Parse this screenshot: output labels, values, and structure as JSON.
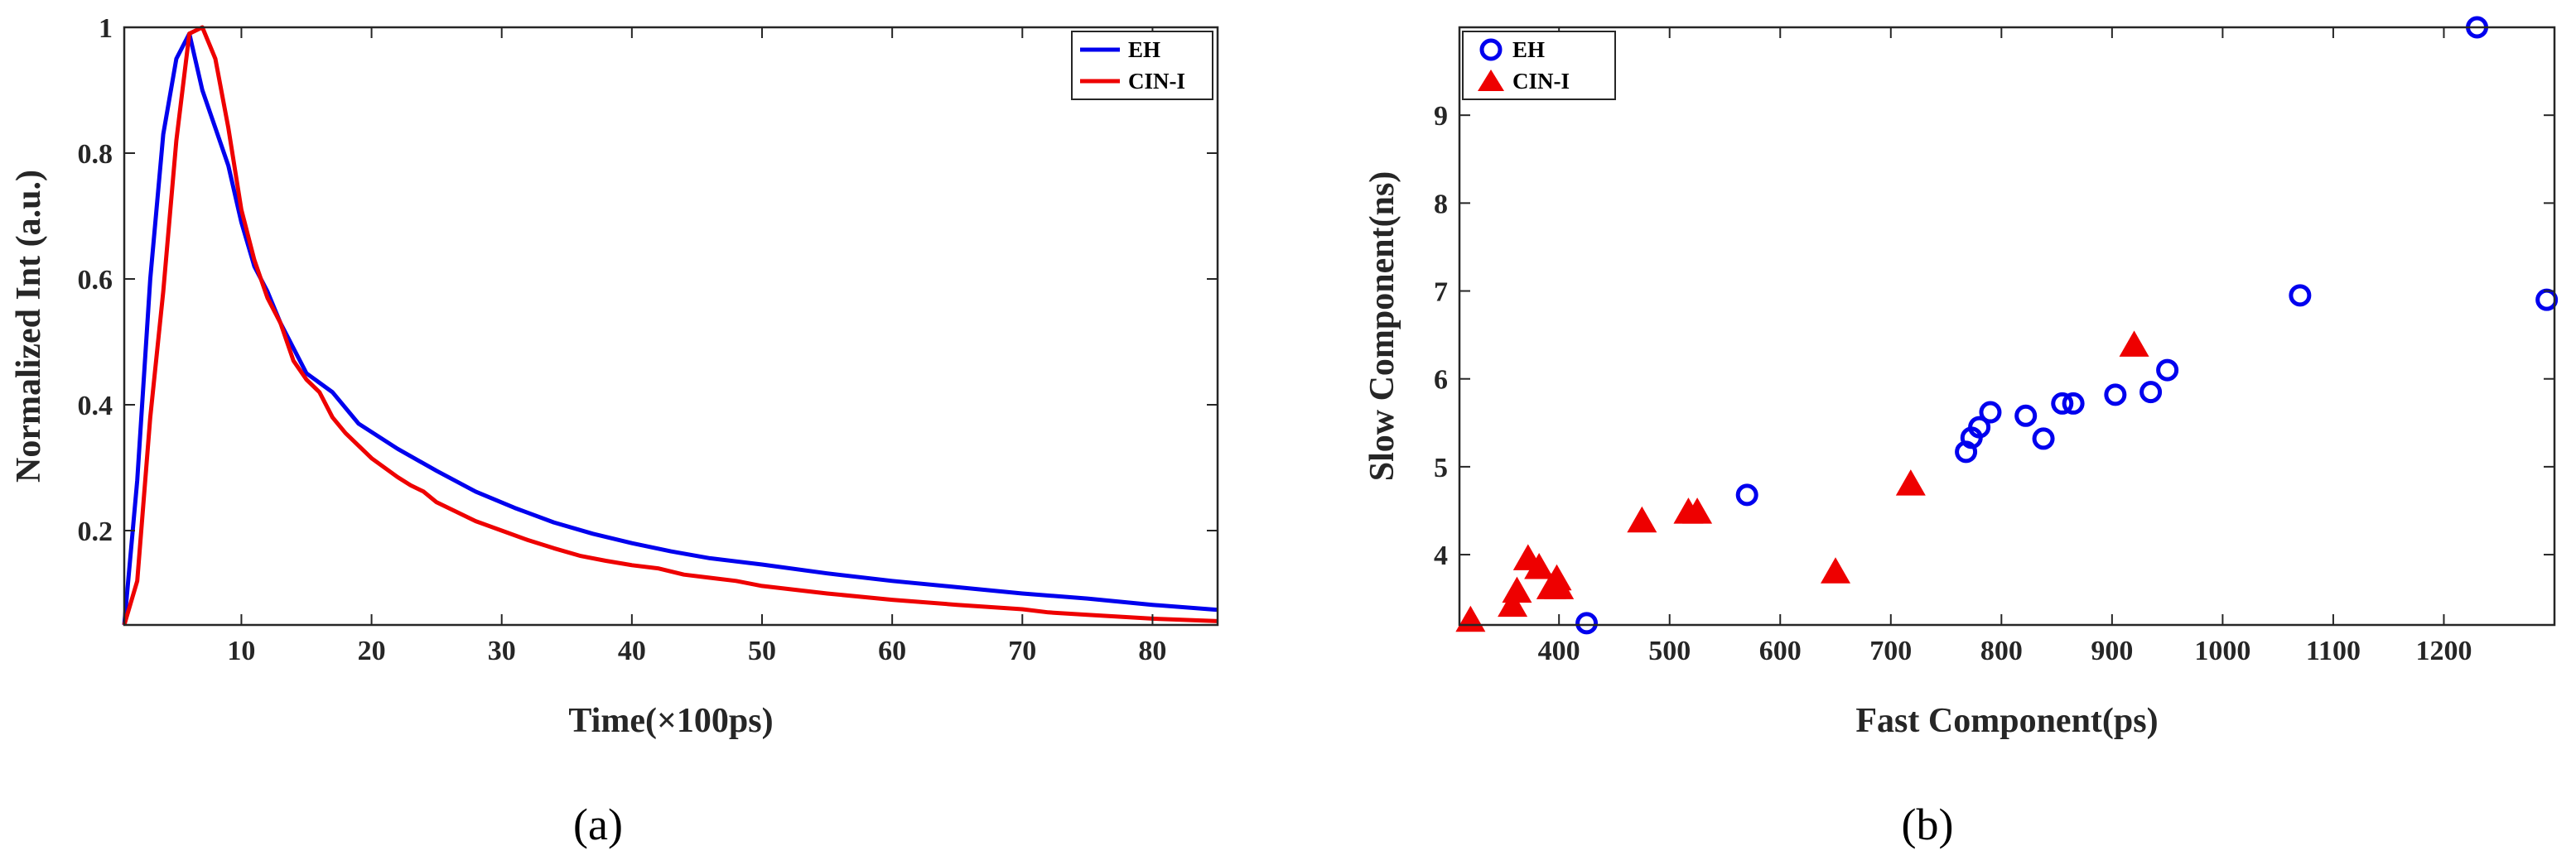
{
  "chart_data": [
    {
      "id": "a",
      "type": "line",
      "caption": "(a)",
      "xlabel": "Time(×100ps)",
      "ylabel": "Normalized Int (a.u.)",
      "xlim": [
        1,
        85
      ],
      "ylim": [
        0.05,
        1.0
      ],
      "xticks": [
        10,
        20,
        30,
        40,
        50,
        60,
        70,
        80
      ],
      "yticks": [
        0.2,
        0.4,
        0.6,
        0.8,
        1
      ],
      "ytick_labels": [
        "0.2",
        "0.4",
        "0.6",
        "0.8",
        "1"
      ],
      "legend_position": "top-right",
      "series": [
        {
          "name": "EH",
          "color": "#0000ee",
          "x": [
            1,
            2,
            3,
            4,
            5,
            6,
            7,
            8,
            9,
            10,
            11,
            12,
            13,
            14,
            15,
            17,
            19,
            22,
            25,
            28,
            31,
            34,
            37,
            40,
            43,
            46,
            50,
            55,
            60,
            65,
            70,
            75,
            80,
            85
          ],
          "y": [
            0.05,
            0.28,
            0.6,
            0.83,
            0.95,
            0.99,
            0.9,
            0.84,
            0.78,
            0.69,
            0.62,
            0.58,
            0.53,
            0.49,
            0.45,
            0.42,
            0.37,
            0.33,
            0.295,
            0.262,
            0.236,
            0.213,
            0.195,
            0.18,
            0.167,
            0.156,
            0.146,
            0.132,
            0.12,
            0.11,
            0.1,
            0.092,
            0.082,
            0.074
          ]
        },
        {
          "name": "CIN-I",
          "color": "#ee0000",
          "x": [
            1,
            2,
            3,
            4,
            5,
            6,
            7,
            8,
            9,
            10,
            11,
            12,
            13,
            14,
            15,
            16,
            17,
            18,
            19,
            20,
            21,
            22,
            23,
            24,
            25,
            26,
            27,
            28,
            30,
            32,
            34,
            36,
            38,
            40,
            42,
            44,
            46,
            48,
            50,
            55,
            60,
            65,
            70,
            72,
            75,
            80,
            85
          ],
          "y": [
            0.05,
            0.12,
            0.38,
            0.58,
            0.82,
            0.99,
            1.0,
            0.95,
            0.84,
            0.71,
            0.63,
            0.57,
            0.53,
            0.47,
            0.44,
            0.42,
            0.38,
            0.355,
            0.335,
            0.315,
            0.3,
            0.285,
            0.272,
            0.262,
            0.245,
            0.235,
            0.225,
            0.215,
            0.2,
            0.185,
            0.172,
            0.16,
            0.152,
            0.145,
            0.14,
            0.13,
            0.125,
            0.12,
            0.112,
            0.1,
            0.09,
            0.082,
            0.075,
            0.07,
            0.066,
            0.06,
            0.056
          ]
        }
      ]
    },
    {
      "id": "b",
      "type": "scatter",
      "caption": "(b)",
      "xlabel": "Fast Component(ps)",
      "ylabel": "Slow Component(ns)",
      "xlim": [
        310,
        1300
      ],
      "ylim": [
        3.2,
        10.0
      ],
      "xticks": [
        400,
        500,
        600,
        700,
        800,
        900,
        1000,
        1100,
        1200
      ],
      "yticks": [
        4,
        5,
        6,
        7,
        8,
        9
      ],
      "legend_position": "top-left",
      "series": [
        {
          "name": "EH",
          "marker": "circle",
          "color": "#0000ee",
          "x": [
            425,
            570,
            768,
            773,
            780,
            790,
            822,
            838,
            855,
            865,
            903,
            935,
            950,
            1070,
            1230,
            1293
          ],
          "y": [
            3.22,
            4.68,
            5.17,
            5.33,
            5.45,
            5.62,
            5.58,
            5.32,
            5.72,
            5.72,
            5.82,
            5.85,
            6.1,
            6.95,
            10.0,
            6.9
          ]
        },
        {
          "name": "CIN-I",
          "marker": "triangle",
          "color": "#ee0000",
          "x": [
            320,
            358,
            362,
            372,
            382,
            393,
            398,
            400,
            475,
            517,
            525,
            650,
            718,
            920
          ],
          "y": [
            3.25,
            3.42,
            3.58,
            3.95,
            3.85,
            3.62,
            3.72,
            3.62,
            4.38,
            4.48,
            4.48,
            3.8,
            4.8,
            6.38
          ]
        }
      ]
    }
  ]
}
